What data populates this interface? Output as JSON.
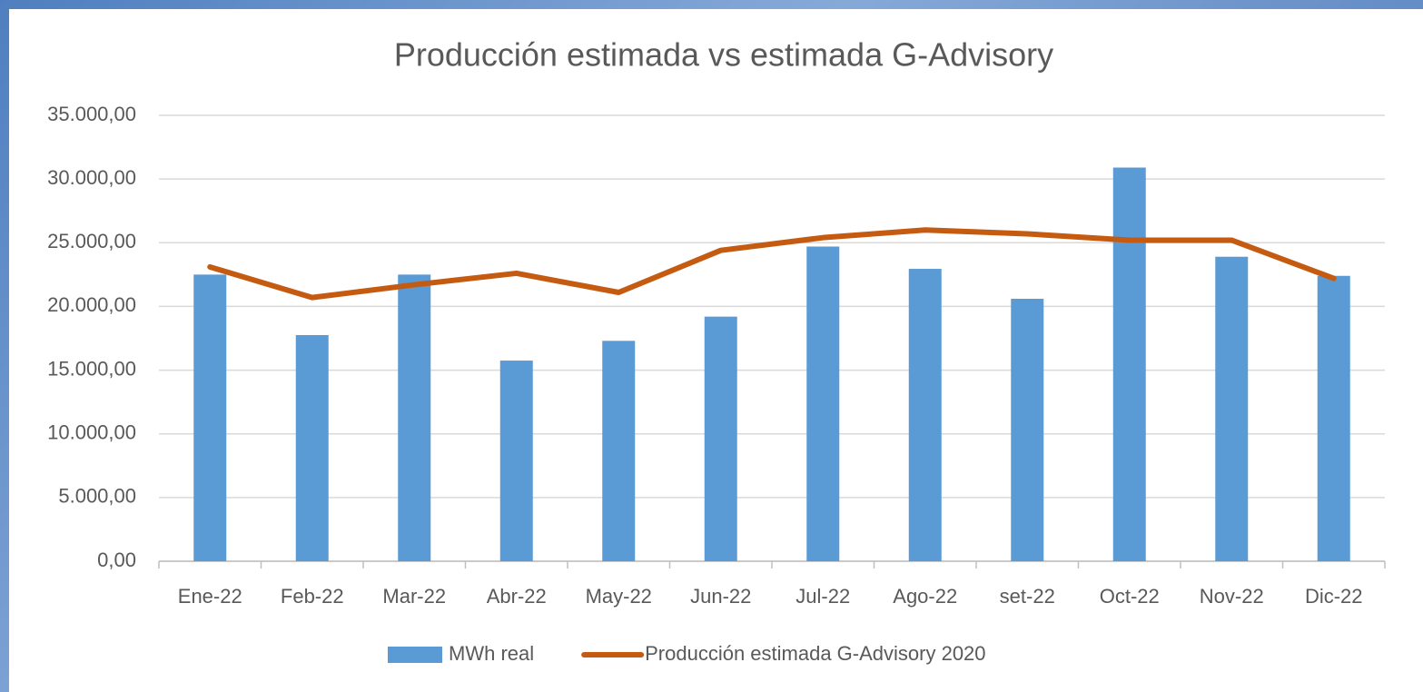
{
  "chart_data": {
    "type": "bar-line",
    "title": "Producción estimada vs estimada G-Advisory",
    "categories": [
      "Ene-22",
      "Feb-22",
      "Mar-22",
      "Abr-22",
      "May-22",
      "Jun-22",
      "Jul-22",
      "Ago-22",
      "set-22",
      "Oct-22",
      "Nov-22",
      "Dic-22"
    ],
    "series": [
      {
        "name": "MWh real",
        "type": "bar",
        "color": "#5b9bd5",
        "values": [
          22500,
          17750,
          22500,
          15750,
          17300,
          19200,
          24700,
          22950,
          20600,
          30900,
          23900,
          22400
        ]
      },
      {
        "name": "Producción estimada G-Advisory 2020",
        "type": "line",
        "color": "#c55a11",
        "values": [
          23100,
          20700,
          21700,
          22600,
          21100,
          24400,
          25400,
          26000,
          25700,
          25200,
          25200,
          22200
        ]
      }
    ],
    "ylim": [
      0,
      35000
    ],
    "yticks": [
      {
        "value": 0,
        "label": "0,00"
      },
      {
        "value": 5000,
        "label": "5.000,00"
      },
      {
        "value": 10000,
        "label": "10.000,00"
      },
      {
        "value": 15000,
        "label": "15.000,00"
      },
      {
        "value": 20000,
        "label": "20.000,00"
      },
      {
        "value": 25000,
        "label": "25.000,00"
      },
      {
        "value": 30000,
        "label": "30.000,00"
      },
      {
        "value": 35000,
        "label": "35.000,00"
      }
    ],
    "grid": true,
    "legend": "bottom"
  }
}
